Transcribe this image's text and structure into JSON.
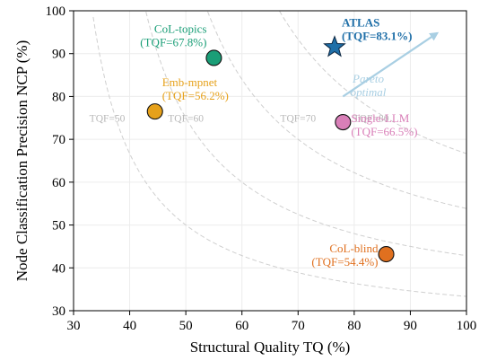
{
  "chart_data": {
    "type": "scatter",
    "xlabel": "Structural Quality TQ (%)",
    "ylabel": "Node Classification Precision NCP (%)",
    "xlim": [
      30,
      100
    ],
    "ylim": [
      30,
      100
    ],
    "xticks": [
      30,
      40,
      50,
      60,
      70,
      80,
      90,
      100
    ],
    "yticks": [
      30,
      40,
      50,
      60,
      70,
      80,
      90,
      100
    ],
    "grid": true,
    "points": [
      {
        "name": "CoL-topics",
        "tqf": "(TQF=67.8%)",
        "x": 55,
        "y": 89,
        "marker": "circle",
        "color": "#1a9e77",
        "label_color": "#1a9e77",
        "bold": false
      },
      {
        "name": "Emb-mpnet",
        "tqf": "(TQF=56.2%)",
        "x": 44.5,
        "y": 76.5,
        "marker": "circle",
        "color": "#e6a11a",
        "label_color": "#e6a11a",
        "bold": false
      },
      {
        "name": "Single-LLM",
        "tqf": "(TQF=66.5%)",
        "x": 78,
        "y": 74,
        "marker": "circle",
        "color": "#d97fb8",
        "label_color": "#d97fb8",
        "bold": false
      },
      {
        "name": "CoL-blind",
        "tqf": "(TQF=54.4%)",
        "x": 85.7,
        "y": 43.2,
        "marker": "circle",
        "color": "#e0701f",
        "label_color": "#e0701f",
        "bold": false
      },
      {
        "name": "ATLAS",
        "tqf": "(TQF=83.1%)",
        "x": 76.5,
        "y": 91.5,
        "marker": "star",
        "color": "#1f6fa8",
        "label_color": "#1f6fa8",
        "bold": true
      }
    ],
    "iso_curves": [
      {
        "label": "TQF=50",
        "value": 50
      },
      {
        "label": "TQF=60",
        "value": 60
      },
      {
        "label": "TQF=70",
        "value": 70
      },
      {
        "label": "TQF=80",
        "value": 80
      }
    ],
    "annotation": {
      "text_line1": "Pareto",
      "text_line2": "optimal",
      "color": "#a9cfe3"
    }
  }
}
